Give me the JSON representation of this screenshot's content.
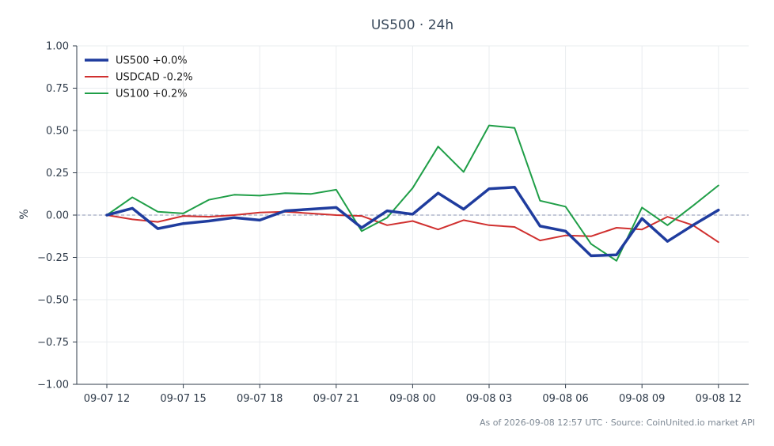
{
  "chart_data": {
    "type": "line",
    "title": "US500 · 24h",
    "ylabel": "%",
    "xlabel": "",
    "ylim": [
      -1.0,
      1.0
    ],
    "yticks": [
      1.0,
      0.75,
      0.5,
      0.25,
      0.0,
      -0.25,
      -0.5,
      -0.75,
      -1.0
    ],
    "ytick_labels": [
      "1.00",
      "0.75",
      "0.50",
      "0.25",
      "0.00",
      "−0.25",
      "−0.50",
      "−0.75",
      "−1.00"
    ],
    "x": [
      "09-07 12",
      "09-07 13",
      "09-07 14",
      "09-07 15",
      "09-07 16",
      "09-07 17",
      "09-07 18",
      "09-07 19",
      "09-07 20",
      "09-07 21",
      "09-07 22",
      "09-07 23",
      "09-08 00",
      "09-08 01",
      "09-08 02",
      "09-08 03",
      "09-08 04",
      "09-08 05",
      "09-08 06",
      "09-08 07",
      "09-08 08",
      "09-08 09",
      "09-08 10",
      "09-08 11",
      "09-08 12"
    ],
    "xtick_labels": [
      "09-07 12",
      "09-07 15",
      "09-07 18",
      "09-07 21",
      "09-08 00",
      "09-08 03",
      "09-08 06",
      "09-08 09",
      "09-08 12"
    ],
    "grid": true,
    "zero_line": true,
    "legend_position": "top-left",
    "series": [
      {
        "name": "US500 +0.0%",
        "color": "#1f3c9e",
        "width": 3.5,
        "values": [
          0.0,
          0.04,
          -0.08,
          -0.05,
          -0.035,
          -0.015,
          -0.03,
          0.025,
          0.035,
          0.045,
          -0.075,
          0.025,
          0.005,
          0.13,
          0.035,
          0.155,
          0.165,
          -0.065,
          -0.095,
          -0.24,
          -0.235,
          -0.02,
          -0.155,
          -0.06,
          0.03
        ]
      },
      {
        "name": "USDCAD -0.2%",
        "color": "#d0302f",
        "width": 2,
        "values": [
          0.0,
          -0.025,
          -0.04,
          -0.005,
          -0.01,
          0.0,
          0.015,
          0.02,
          0.01,
          0.0,
          -0.005,
          -0.06,
          -0.035,
          -0.085,
          -0.03,
          -0.06,
          -0.07,
          -0.15,
          -0.12,
          -0.125,
          -0.075,
          -0.085,
          -0.01,
          -0.06,
          -0.16
        ]
      },
      {
        "name": "US100 +0.2%",
        "color": "#1f9e47",
        "width": 2,
        "values": [
          0.0,
          0.105,
          0.02,
          0.01,
          0.09,
          0.12,
          0.115,
          0.13,
          0.125,
          0.15,
          -0.095,
          -0.015,
          0.16,
          0.405,
          0.255,
          0.53,
          0.515,
          0.085,
          0.05,
          -0.17,
          -0.27,
          0.045,
          -0.06,
          0.055,
          0.175
        ]
      }
    ]
  },
  "footer": "As of 2026-09-08 12:57 UTC · Source: CoinUnited.io market API"
}
